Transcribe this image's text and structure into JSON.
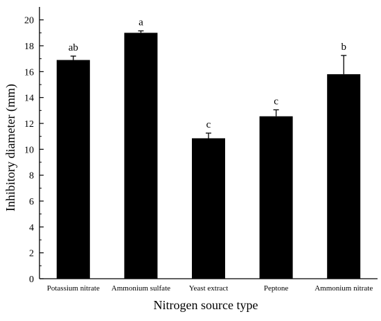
{
  "chart_data": {
    "type": "bar",
    "categories": [
      "Potassium nitrate",
      "Ammonium sulfate",
      "Yeast extract",
      "Peptone",
      "Ammonium nitrate"
    ],
    "values": [
      16.9,
      19.0,
      10.85,
      12.55,
      15.8
    ],
    "errors": [
      0.3,
      0.15,
      0.4,
      0.5,
      1.45
    ],
    "significance": [
      "ab",
      "a",
      "c",
      "c",
      "b"
    ],
    "xlabel": "Nitrogen source type",
    "ylabel": "Inhibitory diameter (mm)",
    "ylim": [
      0,
      21
    ],
    "yticks": [
      0,
      2,
      4,
      6,
      8,
      10,
      12,
      14,
      16,
      18,
      20
    ],
    "bar_color": "#000000",
    "grid": false,
    "legend": "none"
  }
}
